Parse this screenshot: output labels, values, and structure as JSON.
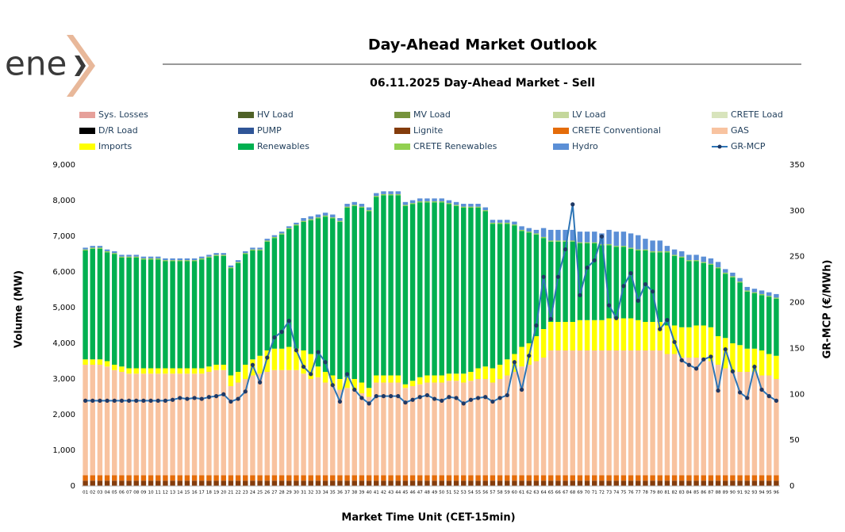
{
  "logo": "ene",
  "chart_data": {
    "type": "bar",
    "title": "Day-Ahead Market Outlook",
    "subtitle": "06.11.2025  Day-Ahead Market - Sell",
    "y_label": "Volume (MW)",
    "y2_label": "GR-MCP (€/MWh)",
    "x_label": "Market Time Unit (CET-15min)",
    "stacked": true,
    "categories": [
      "01",
      "02",
      "03",
      "04",
      "05",
      "06",
      "07",
      "08",
      "09",
      "10",
      "11",
      "12",
      "13",
      "14",
      "15",
      "16",
      "17",
      "18",
      "19",
      "20",
      "21",
      "22",
      "23",
      "24",
      "25",
      "26",
      "27",
      "28",
      "29",
      "30",
      "31",
      "32",
      "33",
      "34",
      "35",
      "36",
      "37",
      "38",
      "39",
      "40",
      "41",
      "42",
      "43",
      "44",
      "45",
      "46",
      "47",
      "48",
      "49",
      "50",
      "51",
      "52",
      "53",
      "54",
      "55",
      "56",
      "57",
      "58",
      "59",
      "60",
      "61",
      "62",
      "63",
      "64",
      "65",
      "66",
      "67",
      "68",
      "69",
      "70",
      "71",
      "72",
      "73",
      "74",
      "75",
      "76",
      "77",
      "78",
      "79",
      "80",
      "81",
      "82",
      "83",
      "84",
      "85",
      "86",
      "87",
      "88",
      "89",
      "90",
      "91",
      "92",
      "93",
      "94",
      "95",
      "96"
    ],
    "ylim": [
      0,
      9000
    ],
    "yticks": [
      0,
      {
        "value": 1000,
        "label": "1,000"
      },
      {
        "value": 2000,
        "label": "2,000"
      },
      {
        "value": 3000,
        "label": "3,000"
      },
      {
        "value": 4000,
        "label": "4,000"
      },
      {
        "value": 5000,
        "label": "5,000"
      },
      {
        "value": 6000,
        "label": "6,000"
      },
      {
        "value": 7000,
        "label": "7,000"
      },
      {
        "value": 8000,
        "label": "8,000"
      },
      {
        "value": 9000,
        "label": "9,000"
      }
    ],
    "y2lim": [
      0,
      350
    ],
    "y2ticks": [
      0,
      50,
      100,
      150,
      200,
      250,
      300,
      350
    ],
    "series": [
      {
        "name": "Sys. Losses",
        "color": "#e6a09a"
      },
      {
        "name": "HV Load",
        "color": "#4f6228"
      },
      {
        "name": "MV Load",
        "color": "#76933c"
      },
      {
        "name": "LV Load",
        "color": "#c4d79b"
      },
      {
        "name": "CRETE Load",
        "color": "#d8e4bc"
      },
      {
        "name": "D/R Load",
        "color": "#000000"
      },
      {
        "name": "PUMP",
        "color": "#2f5597"
      },
      {
        "name": "Lignite",
        "color": "#843c0c",
        "values": [
          150,
          150,
          150,
          150,
          150,
          150,
          150,
          150,
          150,
          150,
          150,
          150,
          150,
          150,
          150,
          150,
          150,
          150,
          150,
          150,
          150,
          150,
          150,
          150,
          150,
          150,
          150,
          150,
          150,
          150,
          150,
          150,
          150,
          150,
          150,
          150,
          150,
          150,
          150,
          150,
          150,
          150,
          150,
          150,
          150,
          150,
          150,
          150,
          150,
          150,
          150,
          150,
          150,
          150,
          150,
          150,
          150,
          150,
          150,
          150,
          150,
          150,
          150,
          150,
          150,
          150,
          150,
          150,
          150,
          150,
          150,
          150,
          150,
          150,
          150,
          150,
          150,
          150,
          150,
          150,
          150,
          150,
          150,
          150,
          150,
          150,
          150,
          150,
          150,
          150,
          150,
          150,
          150,
          150,
          150,
          150
        ]
      },
      {
        "name": "CRETE Conventional",
        "color": "#e46c0a",
        "values": [
          150,
          150,
          150,
          150,
          150,
          150,
          150,
          150,
          150,
          150,
          150,
          150,
          150,
          150,
          150,
          150,
          150,
          150,
          150,
          150,
          150,
          150,
          150,
          150,
          150,
          150,
          150,
          150,
          150,
          150,
          150,
          150,
          150,
          150,
          150,
          150,
          150,
          150,
          150,
          150,
          150,
          150,
          150,
          150,
          150,
          150,
          150,
          150,
          150,
          150,
          150,
          150,
          150,
          150,
          150,
          150,
          150,
          150,
          150,
          150,
          150,
          150,
          150,
          150,
          150,
          150,
          150,
          150,
          150,
          150,
          150,
          150,
          150,
          150,
          150,
          150,
          150,
          150,
          150,
          150,
          150,
          150,
          150,
          150,
          150,
          150,
          150,
          150,
          150,
          150,
          150,
          150,
          150,
          150,
          150,
          150
        ]
      },
      {
        "name": "GAS",
        "color": "#f8c3a0",
        "values": [
          3100,
          3100,
          3100,
          3050,
          2950,
          2900,
          2850,
          2850,
          2850,
          2850,
          2850,
          2850,
          2850,
          2850,
          2850,
          2850,
          2850,
          2900,
          2950,
          2950,
          2500,
          2600,
          2700,
          2800,
          2850,
          2900,
          2950,
          2950,
          2950,
          2950,
          2850,
          2700,
          2750,
          2600,
          2500,
          2400,
          2450,
          2400,
          2300,
          2200,
          2600,
          2600,
          2600,
          2600,
          2450,
          2500,
          2550,
          2600,
          2600,
          2600,
          2650,
          2650,
          2600,
          2650,
          2700,
          2700,
          2600,
          2700,
          2800,
          2900,
          3050,
          3100,
          3200,
          3300,
          3500,
          3500,
          3500,
          3500,
          3500,
          3500,
          3500,
          3500,
          3500,
          3500,
          3500,
          3500,
          3500,
          3500,
          3500,
          3500,
          3400,
          3400,
          3300,
          3300,
          3300,
          3300,
          3200,
          3100,
          3000,
          2900,
          2900,
          2900,
          2900,
          2800,
          2800,
          2700
        ]
      },
      {
        "name": "Imports",
        "color": "#ffff00",
        "values": [
          150,
          150,
          150,
          150,
          150,
          150,
          150,
          150,
          150,
          150,
          150,
          150,
          150,
          150,
          150,
          150,
          150,
          150,
          150,
          150,
          300,
          300,
          400,
          450,
          500,
          600,
          600,
          600,
          650,
          600,
          650,
          700,
          300,
          300,
          300,
          300,
          300,
          300,
          300,
          250,
          200,
          200,
          200,
          200,
          100,
          150,
          200,
          200,
          200,
          200,
          200,
          200,
          250,
          250,
          300,
          350,
          400,
          400,
          450,
          500,
          550,
          600,
          700,
          800,
          800,
          800,
          800,
          800,
          850,
          850,
          850,
          850,
          900,
          900,
          900,
          900,
          850,
          800,
          800,
          800,
          800,
          800,
          850,
          850,
          900,
          900,
          950,
          800,
          850,
          800,
          750,
          650,
          650,
          700,
          600,
          650
        ]
      },
      {
        "name": "Renewables",
        "color": "#00b050",
        "values": [
          3050,
          3100,
          3100,
          3050,
          3100,
          3050,
          3100,
          3100,
          3050,
          3050,
          3050,
          3000,
          3000,
          3000,
          3000,
          3000,
          3050,
          3050,
          3050,
          3050,
          3000,
          3050,
          3100,
          3050,
          2950,
          3050,
          3100,
          3200,
          3300,
          3450,
          3600,
          3750,
          4150,
          4350,
          4400,
          4400,
          4750,
          4850,
          4900,
          4950,
          5000,
          5050,
          5050,
          5050,
          5000,
          4950,
          4900,
          4850,
          4850,
          4850,
          4750,
          4700,
          4650,
          4600,
          4500,
          4350,
          4050,
          3950,
          3800,
          3600,
          3250,
          3100,
          2850,
          2550,
          2250,
          2250,
          2250,
          2250,
          2150,
          2150,
          2150,
          2100,
          2050,
          2000,
          2000,
          1950,
          1950,
          2000,
          1950,
          1950,
          2050,
          1950,
          1950,
          1850,
          1800,
          1750,
          1750,
          1900,
          1800,
          1850,
          1750,
          1600,
          1550,
          1550,
          1600,
          1600
        ]
      },
      {
        "name": "CRETE Renewables",
        "color": "#92d050",
        "values": [
          30,
          30,
          30,
          30,
          30,
          30,
          30,
          30,
          30,
          30,
          30,
          30,
          30,
          30,
          30,
          30,
          30,
          30,
          30,
          30,
          30,
          30,
          30,
          30,
          30,
          30,
          30,
          30,
          30,
          30,
          30,
          30,
          30,
          30,
          30,
          30,
          30,
          30,
          30,
          30,
          30,
          30,
          30,
          30,
          30,
          30,
          30,
          30,
          30,
          30,
          30,
          30,
          30,
          30,
          30,
          30,
          30,
          30,
          30,
          30,
          30,
          30,
          30,
          30,
          30,
          30,
          30,
          30,
          30,
          30,
          30,
          30,
          30,
          30,
          30,
          30,
          30,
          30,
          30,
          30,
          30,
          30,
          30,
          30,
          30,
          30,
          30,
          30,
          30,
          30,
          30,
          30,
          30,
          30,
          30,
          30
        ]
      },
      {
        "name": "Hydro",
        "color": "#5b8fd6",
        "values": [
          50,
          50,
          50,
          50,
          50,
          50,
          50,
          50,
          50,
          50,
          50,
          50,
          50,
          50,
          50,
          50,
          50,
          50,
          50,
          50,
          50,
          50,
          50,
          50,
          50,
          50,
          50,
          50,
          50,
          50,
          80,
          80,
          80,
          80,
          80,
          80,
          80,
          80,
          80,
          80,
          80,
          80,
          80,
          80,
          80,
          80,
          80,
          80,
          80,
          80,
          80,
          80,
          80,
          80,
          80,
          80,
          80,
          80,
          80,
          80,
          100,
          100,
          100,
          250,
          300,
          300,
          300,
          300,
          300,
          300,
          300,
          300,
          400,
          400,
          400,
          400,
          400,
          300,
          300,
          300,
          150,
          150,
          150,
          150,
          150,
          150,
          150,
          150,
          100,
          100,
          100,
          100,
          100,
          100,
          100,
          100
        ]
      },
      {
        "name": "GR-MCP",
        "color": "#2e75b6",
        "marker_color": "#1f3864",
        "axis": "y2",
        "type": "line",
        "values": [
          93,
          93,
          93,
          93,
          93,
          93,
          93,
          93,
          93,
          93,
          93,
          93,
          94,
          96,
          95,
          96,
          95,
          97,
          98,
          100,
          92,
          95,
          103,
          132,
          113,
          140,
          162,
          168,
          180,
          148,
          130,
          122,
          146,
          135,
          110,
          92,
          122,
          105,
          96,
          90,
          98,
          98,
          98,
          98,
          91,
          94,
          97,
          99,
          95,
          93,
          97,
          96,
          90,
          94,
          96,
          97,
          92,
          96,
          99,
          135,
          105,
          142,
          175,
          228,
          182,
          228,
          258,
          307,
          208,
          238,
          246,
          272,
          197,
          183,
          218,
          232,
          202,
          220,
          212,
          171,
          181,
          157,
          137,
          132,
          128,
          138,
          141,
          104,
          149,
          125,
          102,
          96,
          130,
          105,
          98,
          93
        ]
      }
    ]
  }
}
